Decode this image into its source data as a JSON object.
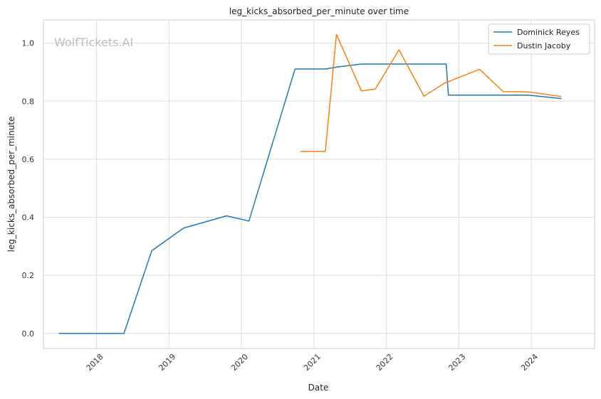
{
  "watermark": "WolfTickets.AI",
  "chart_data": {
    "type": "line",
    "title": "leg_kicks_absorbed_per_minute over time",
    "xlabel": "Date",
    "ylabel": "leg_kicks_absorbed_per_minute",
    "x_ticks": [
      "2018",
      "2019",
      "2020",
      "2021",
      "2022",
      "2023",
      "2024"
    ],
    "y_ticks": [
      "0.0",
      "0.2",
      "0.4",
      "0.6",
      "0.8",
      "1.0"
    ],
    "xlim": [
      "2017-04-08",
      "2024-11-15"
    ],
    "ylim": [
      -0.052,
      1.08
    ],
    "grid": true,
    "legend_position": "top-right",
    "series": [
      {
        "name": "Dominick Reyes",
        "color": "#1f77b4",
        "points": [
          [
            "2017-06-25",
            0.0
          ],
          [
            "2018-05-19",
            0.0
          ],
          [
            "2018-10-06",
            0.285
          ],
          [
            "2019-03-16",
            0.363
          ],
          [
            "2019-10-18",
            0.405
          ],
          [
            "2020-02-08",
            0.387
          ],
          [
            "2020-09-27",
            0.911
          ],
          [
            "2021-02-27",
            0.911
          ],
          [
            "2021-04-30",
            0.918
          ],
          [
            "2021-08-28",
            0.928
          ],
          [
            "2022-10-29",
            0.928
          ],
          [
            "2022-11-09",
            0.821
          ],
          [
            "2023-12-16",
            0.821
          ],
          [
            "2024-06-01",
            0.809
          ]
        ]
      },
      {
        "name": "Dustin Jacoby",
        "color": "#ff7f0e",
        "points": [
          [
            "2020-10-24",
            0.627
          ],
          [
            "2021-02-27",
            0.627
          ],
          [
            "2021-04-24",
            1.03
          ],
          [
            "2021-08-28",
            0.835
          ],
          [
            "2021-11-06",
            0.842
          ],
          [
            "2022-03-05",
            0.977
          ],
          [
            "2022-07-09",
            0.817
          ],
          [
            "2022-10-20",
            0.862
          ],
          [
            "2023-04-15",
            0.91
          ],
          [
            "2023-08-12",
            0.833
          ],
          [
            "2023-12-16",
            0.832
          ],
          [
            "2024-06-01",
            0.816
          ]
        ]
      }
    ]
  }
}
